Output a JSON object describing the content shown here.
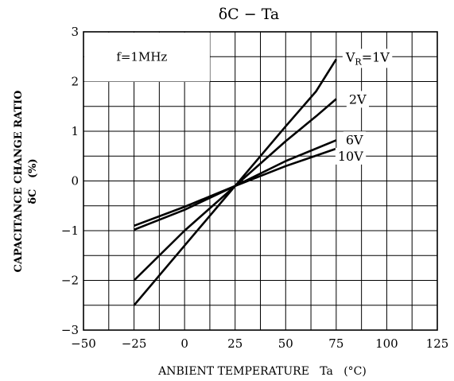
{
  "chart_data": {
    "type": "line",
    "title": "δC − Ta",
    "xlabel": "ANBIENT TEMPERATURE   Ta   (°C)",
    "ylabel": [
      "CAPACITANCE CHANGE RATIO",
      "δC   (%)"
    ],
    "xlim": [
      -50,
      125
    ],
    "ylim": [
      -3,
      3
    ],
    "xticks": [
      -50,
      -25,
      0,
      25,
      50,
      75,
      100,
      125
    ],
    "yticks": [
      -3,
      -2,
      -1,
      0,
      1,
      2,
      3
    ],
    "grid": true,
    "annotation": "f=1MHz",
    "series": [
      {
        "name": "V_R=1V",
        "label_main": "V",
        "label_sub": "R",
        "label_rest": "=1V",
        "x": [
          -25,
          0,
          25,
          50,
          65,
          75
        ],
        "y": [
          -2.5,
          -1.3,
          -0.1,
          1.1,
          1.8,
          2.45
        ]
      },
      {
        "name": "2V",
        "label_main": "2V",
        "label_sub": "",
        "label_rest": "",
        "x": [
          -25,
          0,
          25,
          50,
          65,
          75
        ],
        "y": [
          -2.0,
          -1.0,
          -0.1,
          0.8,
          1.3,
          1.65
        ]
      },
      {
        "name": "6V",
        "label_main": "6V",
        "label_sub": "",
        "label_rest": "",
        "x": [
          -25,
          0,
          25,
          50,
          75
        ],
        "y": [
          -0.98,
          -0.58,
          -0.1,
          0.4,
          0.82
        ]
      },
      {
        "name": "10V",
        "label_main": "10V",
        "label_sub": "",
        "label_rest": "",
        "x": [
          -25,
          0,
          25,
          50,
          75
        ],
        "y": [
          -0.9,
          -0.52,
          -0.1,
          0.3,
          0.65
        ]
      }
    ]
  }
}
